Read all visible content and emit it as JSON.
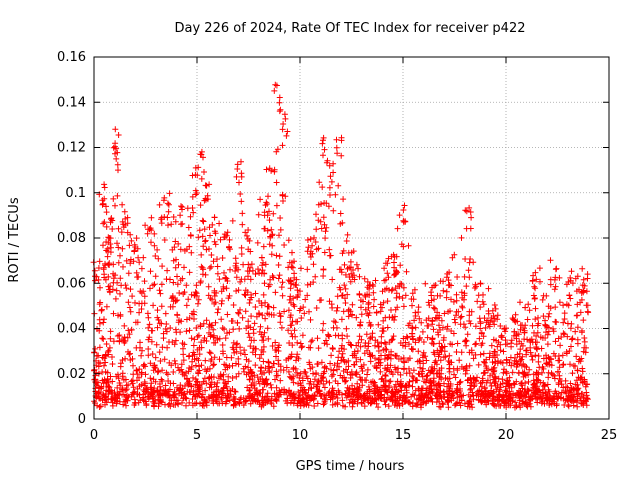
{
  "chart_data": {
    "type": "scatter",
    "title": "Day 226 of 2024, Rate Of TEC Index for receiver p422",
    "xlabel": "GPS time / hours",
    "ylabel": "ROTI / TECUs",
    "xlim": [
      0,
      25
    ],
    "ylim": [
      0,
      0.16
    ],
    "xticks": [
      0,
      5,
      10,
      15,
      20,
      25
    ],
    "xtick_labels": [
      "0",
      "5",
      "10",
      "15",
      "20",
      "25"
    ],
    "yticks": [
      0,
      0.02,
      0.04,
      0.06,
      0.08,
      0.1,
      0.12,
      0.14,
      0.16
    ],
    "ytick_labels": [
      "0",
      "0.02",
      "0.04",
      "0.06",
      "0.08",
      "0.1",
      "0.12",
      "0.14",
      "0.16"
    ],
    "grid": true,
    "marker": "plus",
    "color": "#ff0000",
    "data_range_hours": [
      0,
      24
    ],
    "envelope": [
      {
        "x": 0.1,
        "y": 0.07
      },
      {
        "x": 0.4,
        "y": 0.105
      },
      {
        "x": 0.8,
        "y": 0.09
      },
      {
        "x": 1.1,
        "y": 0.131
      },
      {
        "x": 1.5,
        "y": 0.09
      },
      {
        "x": 2.0,
        "y": 0.08
      },
      {
        "x": 2.7,
        "y": 0.09
      },
      {
        "x": 3.5,
        "y": 0.1
      },
      {
        "x": 4.3,
        "y": 0.095
      },
      {
        "x": 4.9,
        "y": 0.11
      },
      {
        "x": 5.2,
        "y": 0.12
      },
      {
        "x": 5.5,
        "y": 0.105
      },
      {
        "x": 6.0,
        "y": 0.09
      },
      {
        "x": 6.5,
        "y": 0.085
      },
      {
        "x": 7.1,
        "y": 0.115
      },
      {
        "x": 7.6,
        "y": 0.075
      },
      {
        "x": 8.3,
        "y": 0.1
      },
      {
        "x": 8.9,
        "y": 0.148
      },
      {
        "x": 9.3,
        "y": 0.135
      },
      {
        "x": 9.7,
        "y": 0.07
      },
      {
        "x": 10.5,
        "y": 0.08
      },
      {
        "x": 11.2,
        "y": 0.125
      },
      {
        "x": 11.9,
        "y": 0.128
      },
      {
        "x": 12.5,
        "y": 0.075
      },
      {
        "x": 13.4,
        "y": 0.06
      },
      {
        "x": 14.2,
        "y": 0.07
      },
      {
        "x": 14.6,
        "y": 0.075
      },
      {
        "x": 15.0,
        "y": 0.097
      },
      {
        "x": 15.7,
        "y": 0.05
      },
      {
        "x": 16.4,
        "y": 0.06
      },
      {
        "x": 17.2,
        "y": 0.065
      },
      {
        "x": 18.2,
        "y": 0.095
      },
      {
        "x": 18.8,
        "y": 0.06
      },
      {
        "x": 19.5,
        "y": 0.055
      },
      {
        "x": 20.4,
        "y": 0.045
      },
      {
        "x": 21.4,
        "y": 0.065
      },
      {
        "x": 22.3,
        "y": 0.07
      },
      {
        "x": 23.0,
        "y": 0.065
      },
      {
        "x": 23.8,
        "y": 0.067
      }
    ],
    "baseline_min": 0.005
  }
}
